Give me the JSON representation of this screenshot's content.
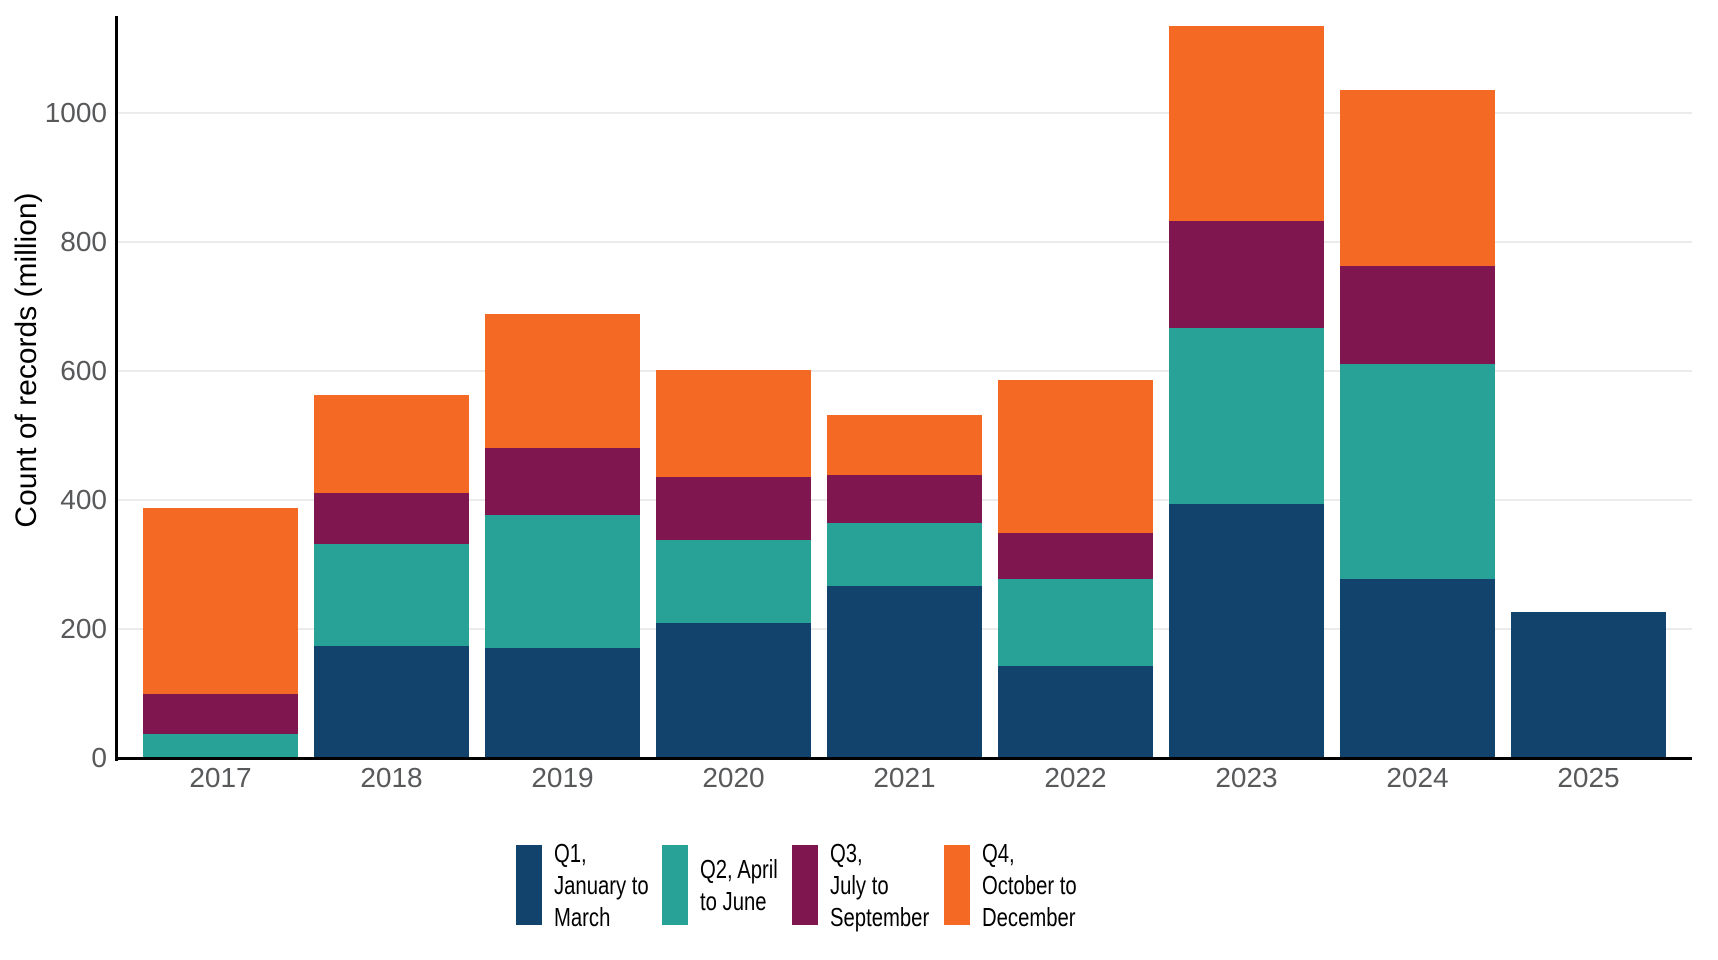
{
  "chart_data": {
    "type": "bar",
    "stacked": true,
    "title": "",
    "xlabel": "",
    "ylabel": "Count of records (million)",
    "categories": [
      "2017",
      "2018",
      "2019",
      "2020",
      "2021",
      "2022",
      "2023",
      "2024",
      "2025"
    ],
    "series": [
      {
        "name": "Q1, January to March",
        "legend_lines": [
          "Q1,",
          "January to",
          "March"
        ],
        "color": "#12436D",
        "values": [
          0,
          174,
          171,
          209,
          266,
          143,
          394,
          277,
          227
        ]
      },
      {
        "name": "Q2, April to June",
        "legend_lines": [
          "Q2, April",
          "to June"
        ],
        "color": "#28A197",
        "values": [
          37,
          158,
          205,
          129,
          98,
          134,
          273,
          333,
          0
        ]
      },
      {
        "name": "Q3, July to September",
        "legend_lines": [
          "Q3,",
          "July to",
          "September"
        ],
        "color": "#801650",
        "values": [
          62,
          78,
          104,
          97,
          75,
          72,
          165,
          153,
          0
        ]
      },
      {
        "name": "Q4, October to December",
        "legend_lines": [
          "Q4,",
          "October to",
          "December"
        ],
        "color": "#F46A25",
        "values": [
          289,
          153,
          208,
          166,
          92,
          237,
          303,
          272,
          0
        ]
      }
    ],
    "totals": [
      388,
      563,
      688,
      601,
      531,
      586,
      1135,
      1035,
      227
    ],
    "yticks": [
      0,
      200,
      400,
      600,
      800,
      1000
    ],
    "ylim": [
      0,
      1150
    ],
    "grid": "horizontal",
    "legend_position": "bottom",
    "colors": {
      "axis_line": "#000000",
      "tick_label": "#58595B",
      "gridline": "#EBEBEB",
      "background": "#FFFFFF"
    }
  }
}
